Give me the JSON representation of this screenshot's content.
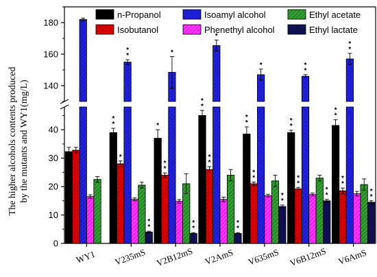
{
  "chart_data": {
    "type": "bar",
    "title": "",
    "xlabel": "",
    "ylabel_lines": [
      "The higher alcohols contents produced",
      "by the mutants and WY1(mg/L)"
    ],
    "categories": [
      "WY1",
      "V235mS",
      "V2B12mS",
      "V2AmS",
      "V635mS",
      "V6B12mS",
      "V6AmS"
    ],
    "y_axis_broken": true,
    "ylim_lower": [
      0,
      48
    ],
    "ylim_upper": [
      130,
      190
    ],
    "yticks_lower": [
      0,
      10,
      20,
      30,
      40
    ],
    "yticks_upper": [
      140,
      160,
      180
    ],
    "legend_position": "top-inside",
    "series": [
      {
        "name": "n-Propanol",
        "color": "#000000",
        "pattern": "solid",
        "values": [
          32.3,
          39.0,
          37.0,
          45.0,
          38.5,
          39.0,
          41.5
        ],
        "errors": [
          1.5,
          1.5,
          3.0,
          1.8,
          2.5,
          0.8,
          2.0
        ],
        "significance": [
          "",
          "**",
          "*",
          "**",
          "**",
          "**",
          "**"
        ]
      },
      {
        "name": "Isobutanol",
        "color": "#e00000",
        "pattern": "hatch",
        "values": [
          32.8,
          28.0,
          24.0,
          26.0,
          21.0,
          19.2,
          18.5
        ],
        "errors": [
          1.0,
          1.0,
          0.8,
          1.0,
          0.6,
          0.5,
          1.0
        ],
        "significance": [
          "",
          "*",
          "**",
          "**",
          "**",
          "**",
          "**"
        ]
      },
      {
        "name": "Phenethyl alcohol",
        "color": "#ff33ff",
        "pattern": "hatch",
        "values": [
          16.5,
          15.5,
          14.8,
          15.5,
          16.8,
          17.2,
          17.5
        ],
        "errors": [
          0.6,
          0.5,
          0.6,
          0.8,
          0.5,
          0.5,
          0.8
        ],
        "significance": [
          "",
          "",
          "",
          "",
          "",
          "",
          ""
        ]
      },
      {
        "name": "Isoamyl alcohol",
        "color": "#2020e0",
        "pattern": "hatch",
        "values": [
          182.0,
          155.0,
          148.5,
          165.5,
          147.0,
          146.0,
          157.0
        ],
        "errors": [
          0.8,
          1.5,
          10.0,
          3.5,
          3.5,
          1.0,
          3.5
        ],
        "significance": [
          "",
          "**",
          "*",
          "*",
          "*",
          "**",
          "**"
        ]
      },
      {
        "name": "Ethyl acetate",
        "color": "#208020",
        "pattern": "hatch",
        "values": [
          22.5,
          20.5,
          21.0,
          24.0,
          22.0,
          23.0,
          20.7
        ],
        "errors": [
          1.0,
          1.0,
          3.5,
          2.0,
          2.0,
          1.0,
          2.0
        ],
        "significance": [
          "",
          "",
          "",
          "",
          "",
          "",
          ""
        ]
      },
      {
        "name": "Ethyl lactate",
        "color": "#101050",
        "pattern": "solid",
        "values": [
          0,
          4.0,
          3.5,
          3.5,
          13.0,
          15.0,
          14.5
        ],
        "errors": [
          0,
          0.3,
          0.3,
          0.3,
          0.5,
          0.5,
          0.5
        ],
        "significance": [
          "",
          "**",
          "**",
          "**",
          "**",
          "**",
          "**"
        ]
      }
    ]
  }
}
